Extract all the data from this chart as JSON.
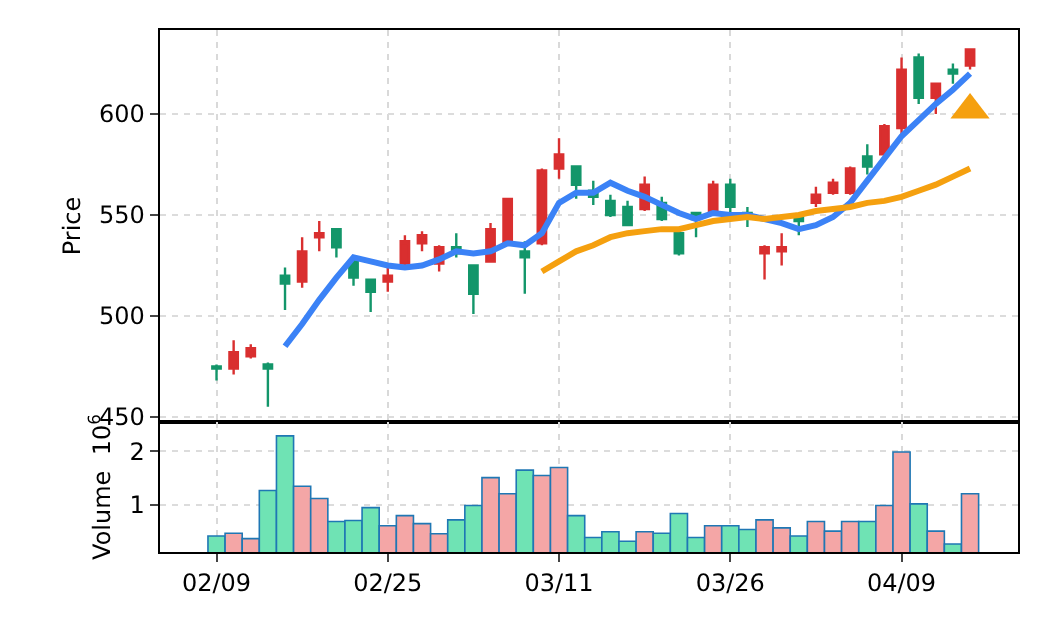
{
  "chart_data": [
    {
      "type": "candlestick",
      "ylabel": "Price",
      "categories": [
        null,
        null,
        null,
        null,
        null,
        null,
        null,
        null,
        null,
        null,
        null,
        null,
        null,
        null,
        null,
        null,
        null,
        null,
        null,
        null,
        null,
        null,
        null,
        null,
        null,
        null,
        null,
        null,
        null,
        null,
        null,
        null,
        null,
        null,
        null,
        null,
        null,
        null,
        null,
        null,
        null,
        null,
        null,
        null,
        null
      ],
      "ohlc": [
        [
          475,
          476,
          468,
          474
        ],
        [
          474,
          488,
          471,
          482
        ],
        [
          480,
          486,
          479,
          484
        ],
        [
          476,
          477,
          455,
          474
        ],
        [
          520,
          524,
          503,
          516
        ],
        [
          517,
          539,
          514,
          532
        ],
        [
          539,
          547,
          532,
          541
        ],
        [
          543,
          543,
          529,
          534
        ],
        [
          527,
          530,
          515,
          519
        ],
        [
          518,
          518,
          502,
          512
        ],
        [
          517,
          524,
          512,
          520
        ],
        [
          526,
          540,
          524,
          537
        ],
        [
          536,
          542,
          532,
          540
        ],
        [
          526,
          535,
          522,
          534
        ],
        [
          534,
          541,
          529,
          531
        ],
        [
          525,
          525,
          501,
          511
        ],
        [
          527,
          546,
          527,
          543
        ],
        [
          536,
          558,
          536,
          558
        ],
        [
          532,
          537,
          511,
          529
        ],
        [
          536,
          573,
          535,
          572
        ],
        [
          573,
          588,
          568,
          580
        ],
        [
          574,
          574,
          558,
          565
        ],
        [
          562,
          567,
          555,
          559
        ],
        [
          557,
          560,
          549,
          550
        ],
        [
          554,
          557,
          545,
          545
        ],
        [
          553,
          569,
          552,
          565
        ],
        [
          556,
          559,
          547,
          548
        ],
        [
          541,
          544,
          530,
          531
        ],
        [
          551,
          551,
          539,
          548
        ],
        [
          551,
          567,
          551,
          565
        ],
        [
          565,
          568,
          551,
          554
        ],
        [
          551,
          554,
          544,
          550
        ],
        [
          531,
          535,
          518,
          534
        ],
        [
          532,
          541,
          525,
          534
        ],
        [
          549,
          551,
          540,
          547
        ],
        [
          556,
          564,
          554,
          560
        ],
        [
          561,
          568,
          560,
          566
        ],
        [
          561,
          574,
          560,
          573
        ],
        [
          579,
          585,
          570,
          574
        ],
        [
          580,
          595,
          579,
          594
        ],
        [
          593,
          628,
          589,
          622
        ],
        [
          628,
          630,
          605,
          608
        ],
        [
          608,
          615,
          600,
          615
        ],
        [
          622,
          625,
          615,
          620
        ],
        [
          624,
          632,
          622,
          632
        ]
      ],
      "colors": [
        "#13966a",
        "#d92f2f",
        "#d92f2f",
        "#13966a",
        "#13966a",
        "#d92f2f",
        "#d92f2f",
        "#13966a",
        "#13966a",
        "#13966a",
        "#d92f2f",
        "#d92f2f",
        "#d92f2f",
        "#d92f2f",
        "#13966a",
        "#13966a",
        "#d92f2f",
        "#d92f2f",
        "#13966a",
        "#d92f2f",
        "#d92f2f",
        "#13966a",
        "#13966a",
        "#13966a",
        "#13966a",
        "#d92f2f",
        "#13966a",
        "#13966a",
        "#13966a",
        "#d92f2f",
        "#13966a",
        "#13966a",
        "#d92f2f",
        "#d92f2f",
        "#13966a",
        "#d92f2f",
        "#d92f2f",
        "#d92f2f",
        "#13966a",
        "#d92f2f",
        "#d92f2f",
        "#13966a",
        "#d92f2f",
        "#13966a",
        "#d92f2f"
      ],
      "series": [
        {
          "type": "line",
          "color": "#3b82f6",
          "values": [
            null,
            null,
            null,
            null,
            485,
            496,
            508,
            519,
            529,
            527,
            525,
            524,
            525,
            528,
            532,
            531,
            532,
            536,
            535,
            541,
            556,
            561,
            561,
            566,
            562,
            559,
            555,
            551,
            548,
            551,
            550,
            550,
            548,
            546,
            543,
            545,
            549,
            556,
            567,
            578,
            589,
            597,
            605,
            612,
            620
          ]
        },
        {
          "type": "line",
          "color": "#f5a00f",
          "values": [
            null,
            null,
            null,
            null,
            null,
            null,
            null,
            null,
            null,
            null,
            null,
            null,
            null,
            null,
            null,
            null,
            null,
            null,
            null,
            522,
            527,
            532,
            535,
            539,
            541,
            542,
            543,
            543,
            545,
            547,
            548,
            549,
            548,
            549,
            550,
            552,
            553,
            554,
            556,
            557,
            559,
            562,
            565,
            569,
            573
          ]
        },
        {
          "type": "scatter",
          "color": "#f5a00f",
          "marker": "triangle",
          "values": [
            null,
            null,
            null,
            null,
            null,
            null,
            null,
            null,
            null,
            null,
            null,
            null,
            null,
            null,
            null,
            null,
            null,
            null,
            null,
            null,
            null,
            null,
            null,
            null,
            null,
            null,
            null,
            null,
            null,
            null,
            null,
            null,
            null,
            null,
            null,
            null,
            null,
            null,
            null,
            null,
            null,
            null,
            null,
            null,
            602
          ]
        }
      ],
      "ylim": [
        447.5,
        641.6
      ],
      "yticks": [
        450,
        500,
        550,
        600
      ],
      "grid": true,
      "tick_labels": "y"
    },
    {
      "type": "bar",
      "ylabel": "Volume  10$^{6}$",
      "categories": [
        "02/09",
        null,
        null,
        null,
        null,
        null,
        null,
        null,
        null,
        null,
        "02/25",
        null,
        null,
        null,
        null,
        null,
        null,
        null,
        null,
        null,
        "03/11",
        null,
        null,
        null,
        null,
        null,
        null,
        null,
        null,
        null,
        "03/26",
        null,
        null,
        null,
        null,
        null,
        null,
        null,
        null,
        null,
        "04/09",
        null,
        null,
        null,
        null
      ],
      "values": [
        0.42,
        0.47,
        0.37,
        1.27,
        2.29,
        1.35,
        1.12,
        0.69,
        0.71,
        0.95,
        0.61,
        0.8,
        0.65,
        0.46,
        0.72,
        0.99,
        1.51,
        1.21,
        1.65,
        1.55,
        1.7,
        0.8,
        0.39,
        0.5,
        0.32,
        0.5,
        0.47,
        0.84,
        0.39,
        0.61,
        0.61,
        0.54,
        0.72,
        0.57,
        0.42,
        0.69,
        0.51,
        0.69,
        0.69,
        0.99,
        1.99,
        1.02,
        0.51,
        0.27,
        1.21
      ],
      "colors": [
        "#6fe3b4",
        "#f4a6a6",
        "#f4a6a6",
        "#6fe3b4",
        "#6fe3b4",
        "#f4a6a6",
        "#f4a6a6",
        "#6fe3b4",
        "#6fe3b4",
        "#6fe3b4",
        "#f4a6a6",
        "#f4a6a6",
        "#f4a6a6",
        "#f4a6a6",
        "#6fe3b4",
        "#6fe3b4",
        "#f4a6a6",
        "#f4a6a6",
        "#6fe3b4",
        "#f4a6a6",
        "#f4a6a6",
        "#6fe3b4",
        "#6fe3b4",
        "#6fe3b4",
        "#6fe3b4",
        "#f4a6a6",
        "#6fe3b4",
        "#6fe3b4",
        "#6fe3b4",
        "#f4a6a6",
        "#6fe3b4",
        "#6fe3b4",
        "#f4a6a6",
        "#f4a6a6",
        "#6fe3b4",
        "#f4a6a6",
        "#f4a6a6",
        "#f4a6a6",
        "#6fe3b4",
        "#f4a6a6",
        "#f4a6a6",
        "#6fe3b4",
        "#f4a6a6",
        "#6fe3b4",
        "#f4a6a6"
      ],
      "ylim": [
        0.12,
        2.55
      ],
      "yticks": [
        1,
        2
      ],
      "grid": true
    }
  ]
}
